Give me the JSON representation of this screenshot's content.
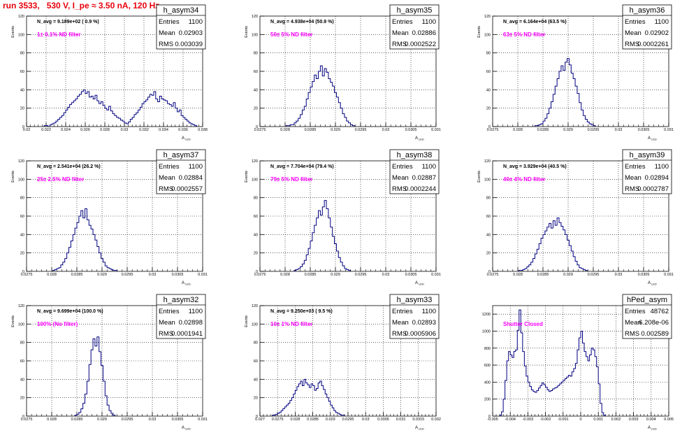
{
  "page_title": "run 3533,   530 V, I_pe ≈ 3.50 nA, 120 Hz",
  "colors": {
    "title": "#e8000b",
    "histogram": "#000080",
    "annotation": "#ff00ff",
    "frame": "#000000",
    "grid": "#000000"
  },
  "chart_data": [
    {
      "type": "histogram",
      "name": "h_asym34",
      "navg": "N_avg = 9.189e+02 ( 0.9 %)",
      "filter_label": "1± 0.1% ND filter",
      "stats": {
        "Entries": "1100",
        "Mean": "0.02903",
        "RMS": "0.003039"
      },
      "ylabel": "Events",
      "xlabel": "A_LED",
      "xlim": [
        0.02,
        0.038
      ],
      "ylim": [
        0,
        120
      ],
      "xticks": [
        "0.02",
        "0.022",
        "0.024",
        "0.026",
        "0.028",
        "0.03",
        "0.032",
        "0.034",
        "0.036",
        "0.038"
      ],
      "yticks": [
        "0",
        "20",
        "40",
        "60",
        "80",
        "100",
        "120"
      ],
      "bins": {
        "lo": 0.0218,
        "width": 0.0002,
        "values": [
          1,
          1,
          0,
          2,
          3,
          4,
          6,
          8,
          10,
          12,
          15,
          18,
          21,
          24,
          26,
          28,
          30,
          33,
          35,
          38,
          40,
          36,
          38,
          32,
          33,
          30,
          34,
          28,
          25,
          27,
          23,
          20,
          18,
          22,
          17,
          14,
          12,
          10,
          9,
          7,
          6,
          4,
          3,
          5,
          8,
          10,
          13,
          15,
          18,
          21,
          25,
          27,
          29,
          32,
          35,
          34,
          38,
          30,
          27,
          33,
          30,
          29,
          28,
          25,
          24,
          22,
          26,
          20,
          16,
          18,
          12,
          10,
          8,
          6,
          4,
          3,
          2,
          1
        ]
      }
    },
    {
      "type": "histogram",
      "name": "h_asym35",
      "navg": "N_avg = 4.938e+04 (50.9 %)",
      "filter_label": "50± 5% ND filter",
      "stats": {
        "Entries": "1100",
        "Mean": "0.02886",
        "RMS": "0.0002522"
      },
      "ylabel": "Events",
      "xlabel": "A_LED",
      "xlim": [
        0.0275,
        0.031
      ],
      "ylim": [
        0,
        120
      ],
      "xticks": [
        "0.0275",
        "0.028",
        "0.0285",
        "0.029",
        "0.0295",
        "0.03",
        "0.0305",
        "0.031"
      ],
      "yticks": [
        "0",
        "20",
        "40",
        "60",
        "80",
        "100",
        "120"
      ],
      "bins": {
        "lo": 0.02802,
        "width": 4e-05,
        "values": [
          1,
          1,
          2,
          2,
          4,
          6,
          9,
          13,
          18,
          22,
          30,
          37,
          43,
          49,
          56,
          52,
          60,
          66,
          55,
          63,
          59,
          52,
          48,
          44,
          37,
          32,
          26,
          20,
          14,
          10,
          6,
          4,
          2,
          1
        ]
      }
    },
    {
      "type": "histogram",
      "name": "h_asym36",
      "navg": "N_avg = 6.164e+04 (63.5 %)",
      "filter_label": "63± 5% ND filter",
      "stats": {
        "Entries": "1100",
        "Mean": "0.02902",
        "RMS": "0.0002261"
      },
      "ylabel": "Events",
      "xlabel": "A_LED",
      "xlim": [
        0.0275,
        0.031
      ],
      "ylim": [
        0,
        120
      ],
      "xticks": [
        "0.0275",
        "0.028",
        "0.0285",
        "0.029",
        "0.0295",
        "0.03",
        "0.0305",
        "0.031"
      ],
      "yticks": [
        "0",
        "20",
        "40",
        "60",
        "80",
        "100",
        "120"
      ],
      "bins": {
        "lo": 0.02834,
        "width": 4e-05,
        "values": [
          1,
          1,
          2,
          3,
          6,
          9,
          14,
          20,
          27,
          35,
          44,
          52,
          60,
          66,
          61,
          70,
          74,
          67,
          58,
          52,
          44,
          36,
          26,
          18,
          12,
          8,
          5,
          3,
          2,
          1
        ]
      }
    },
    {
      "type": "histogram",
      "name": "h_asym37",
      "navg": "N_avg = 2.541e+04 (26.2 %)",
      "filter_label": "25± 2.5% ND filter",
      "stats": {
        "Entries": "1100",
        "Mean": "0.02884",
        "RMS": "0.0002557"
      },
      "ylabel": "Events",
      "xlabel": "A_LED",
      "xlim": [
        0.0275,
        0.031
      ],
      "ylim": [
        0,
        120
      ],
      "xticks": [
        "0.0275",
        "0.028",
        "0.0285",
        "0.029",
        "0.0295",
        "0.03",
        "0.0305",
        "0.031"
      ],
      "yticks": [
        "0",
        "20",
        "40",
        "60",
        "80",
        "100",
        "120"
      ],
      "bins": {
        "lo": 0.02802,
        "width": 4e-05,
        "values": [
          1,
          2,
          3,
          4,
          7,
          10,
          14,
          20,
          26,
          33,
          40,
          47,
          53,
          60,
          66,
          58,
          68,
          56,
          50,
          46,
          40,
          34,
          27,
          20,
          14,
          10,
          6,
          4,
          3,
          2,
          1,
          1
        ]
      }
    },
    {
      "type": "histogram",
      "name": "h_asym38",
      "navg": "N_avg = 7.704e+04 (79.4 %)",
      "filter_label": "79± 5% ND filter",
      "stats": {
        "Entries": "1100",
        "Mean": "0.02887",
        "RMS": "0.0002244"
      },
      "ylabel": "Events",
      "xlabel": "A_LED",
      "xlim": [
        0.0275,
        0.031
      ],
      "ylim": [
        0,
        120
      ],
      "xticks": [
        "0.0275",
        "0.028",
        "0.0285",
        "0.029",
        "0.0295",
        "0.03",
        "0.0305",
        "0.031"
      ],
      "yticks": [
        "0",
        "20",
        "40",
        "60",
        "80",
        "100",
        "120"
      ],
      "bins": {
        "lo": 0.02818,
        "width": 4e-05,
        "values": [
          1,
          2,
          3,
          5,
          8,
          12,
          18,
          25,
          33,
          42,
          50,
          58,
          66,
          61,
          70,
          77,
          68,
          58,
          48,
          38,
          30,
          22,
          15,
          10,
          6,
          3,
          2,
          1
        ]
      }
    },
    {
      "type": "histogram",
      "name": "h_asym39",
      "navg": "N_avg = 3.929e+04 (40.5 %)",
      "filter_label": "40± 4% ND filter",
      "stats": {
        "Entries": "1100",
        "Mean": "0.02894",
        "RMS": "0.0002787"
      },
      "ylabel": "Events",
      "xlabel": "A_LED",
      "xlim": [
        0.0275,
        0.031
      ],
      "ylim": [
        0,
        120
      ],
      "xticks": [
        "0.0275",
        "0.028",
        "0.0285",
        "0.029",
        "0.0295",
        "0.03",
        "0.0305",
        "0.031"
      ],
      "yticks": [
        "0",
        "20",
        "40",
        "60",
        "80",
        "100",
        "120"
      ],
      "bins": {
        "lo": 0.02802,
        "width": 4e-05,
        "values": [
          1,
          1,
          2,
          3,
          5,
          7,
          10,
          14,
          19,
          24,
          30,
          36,
          40,
          44,
          48,
          52,
          47,
          55,
          50,
          58,
          53,
          49,
          45,
          40,
          34,
          28,
          22,
          16,
          11,
          7,
          4,
          3,
          2,
          1
        ]
      }
    },
    {
      "type": "histogram",
      "name": "h_asym32",
      "navg": "N_avg = 9.699e+04 (100.0 %)",
      "filter_label": "100% (No filter)",
      "stats": {
        "Entries": "1100",
        "Mean": "0.02898",
        "RMS": "0.0001941"
      },
      "ylabel": "Events",
      "xlabel": "A_LED",
      "xlim": [
        0.0275,
        0.031
      ],
      "ylim": [
        0,
        120
      ],
      "xticks": [
        "0.0275",
        "0.028",
        "0.0285",
        "0.029",
        "0.0295",
        "0.03",
        "0.0305",
        "0.031"
      ],
      "yticks": [
        "0",
        "20",
        "40",
        "60",
        "80",
        "100",
        "120"
      ],
      "bins": {
        "lo": 0.02846,
        "width": 4e-05,
        "values": [
          1,
          2,
          4,
          8,
          14,
          24,
          38,
          56,
          72,
          84,
          76,
          86,
          70,
          55,
          38,
          22,
          12,
          6,
          3,
          1
        ]
      }
    },
    {
      "type": "histogram",
      "name": "h_asym33",
      "navg": "N_avg = 9.250e+03 ( 9.5 %)",
      "filter_label": "10± 1% ND filter",
      "stats": {
        "Entries": "1100",
        "Mean": "0.02893",
        "RMS": "0.0005906"
      },
      "ylabel": "Events",
      "xlabel": "A_LED",
      "xlim": [
        0.027,
        0.032
      ],
      "ylim": [
        0,
        120
      ],
      "xticks": [
        "0.027",
        "0.0275",
        "0.028",
        "0.0285",
        "0.029",
        "0.0295",
        "0.03",
        "0.0305",
        "0.031",
        "0.0315",
        "0.032"
      ],
      "yticks": [
        "0",
        "20",
        "40",
        "60",
        "80",
        "100",
        "120"
      ],
      "bins": {
        "lo": 0.02735,
        "width": 5e-05,
        "values": [
          1,
          1,
          2,
          3,
          4,
          6,
          8,
          10,
          12,
          14,
          17,
          20,
          24,
          28,
          32,
          35,
          38,
          33,
          40,
          36,
          34,
          31,
          35,
          33,
          28,
          30,
          36,
          38,
          33,
          29,
          24,
          20,
          16,
          12,
          9,
          6,
          4,
          3,
          2,
          1,
          1
        ]
      }
    },
    {
      "type": "histogram",
      "name": "hPed_asym",
      "navg": "",
      "filter_label": "Shutter Closed",
      "stats": {
        "Entries": "48762",
        "Mean": "6.208e-06",
        "RMS": "0.002589"
      },
      "ylabel": "",
      "xlabel": "A_LED",
      "xlim": [
        -0.005,
        0.005
      ],
      "ylim": [
        0,
        1300
      ],
      "xticks": [
        "-0.005",
        "-0.004",
        "-0.003",
        "-0.002",
        "-0.001",
        "0",
        "0.001",
        "0.002",
        "0.003",
        "0.004",
        "0.005"
      ],
      "yticks": [
        "0",
        "200",
        "400",
        "600",
        "800",
        "1000",
        "1200"
      ],
      "bins": {
        "lo": -0.0046,
        "width": 0.0001,
        "values": [
          10,
          50,
          200,
          420,
          650,
          760,
          720,
          690,
          760,
          780,
          1010,
          1250,
          980,
          760,
          590,
          470,
          400,
          350,
          310,
          290,
          280,
          300,
          330,
          360,
          390,
          370,
          340,
          310,
          290,
          300,
          320,
          330,
          340,
          360,
          380,
          400,
          420,
          440,
          460,
          480,
          470,
          520,
          560,
          620,
          780,
          920,
          1000,
          860,
          760,
          700,
          650,
          720,
          800,
          780,
          700,
          580,
          380,
          150,
          40,
          10
        ]
      }
    }
  ]
}
